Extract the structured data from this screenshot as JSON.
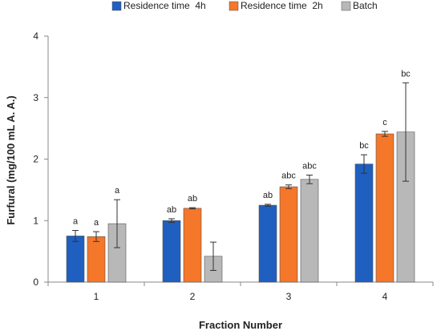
{
  "chart_data": {
    "type": "bar",
    "xlabel": "Fraction Number",
    "ylabel": "Furfural  (mg/100 mL A. A.)",
    "ylim": [
      0,
      4
    ],
    "yticks": [
      "0",
      "1",
      "2",
      "3",
      "4"
    ],
    "categories": [
      "1",
      "2",
      "3",
      "4"
    ],
    "legend_position": "top",
    "series": [
      {
        "name": "Residence time  4h",
        "color": "#1f5fbf",
        "values": [
          0.75,
          1.0,
          1.25,
          1.92
        ],
        "errors": [
          0.09,
          0.03,
          0.015,
          0.15
        ],
        "labels": [
          "a",
          "ab",
          "ab",
          "bc"
        ]
      },
      {
        "name": "Residence time  2h",
        "color": "#f4772a",
        "values": [
          0.74,
          1.2,
          1.55,
          2.41
        ],
        "errors": [
          0.08,
          0.01,
          0.03,
          0.04
        ],
        "labels": [
          "a",
          "ab",
          "abc",
          "c"
        ]
      },
      {
        "name": "Batch",
        "color": "#b8b8b8",
        "values": [
          0.95,
          0.42,
          1.67,
          2.44
        ],
        "errors": [
          0.39,
          0.23,
          0.07,
          0.8
        ],
        "labels": [
          "a",
          "",
          "abc",
          "bc"
        ]
      }
    ]
  }
}
